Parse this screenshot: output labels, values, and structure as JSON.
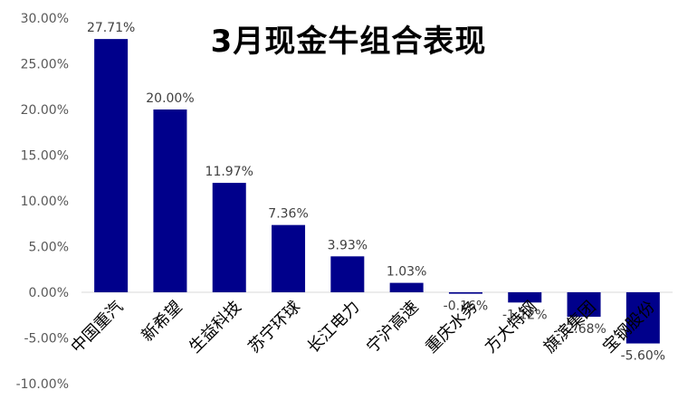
{
  "chart_data": {
    "type": "bar",
    "title": "3月现金牛组合表现",
    "categories": [
      "中国重汽",
      "新希望",
      "生益科技",
      "苏宁环球",
      "长江电力",
      "宁沪高速",
      "重庆水务",
      "方大特钢",
      "旗滨集团",
      "宝钢股份"
    ],
    "values": [
      27.71,
      20.0,
      11.97,
      7.36,
      3.93,
      1.03,
      -0.16,
      -1.12,
      -2.68,
      -5.6
    ],
    "data_labels": [
      "27.71%",
      "20.00%",
      "11.97%",
      "7.36%",
      "3.93%",
      "1.03%",
      "-0.16%",
      "-1.12%",
      "-2.68%",
      "-5.60%"
    ],
    "yticks": [
      30,
      25,
      20,
      15,
      10,
      5,
      0,
      -5,
      -10
    ],
    "ytick_labels": [
      "30.00%",
      "25.00%",
      "20.00%",
      "15.00%",
      "10.00%",
      "5.00%",
      "0.00%",
      "-5.00%",
      "-10.00%"
    ],
    "ylim": [
      -10,
      30
    ],
    "xlabel": "",
    "ylabel": "",
    "grid": false,
    "legend": "none",
    "bar_color": "#00008B"
  }
}
